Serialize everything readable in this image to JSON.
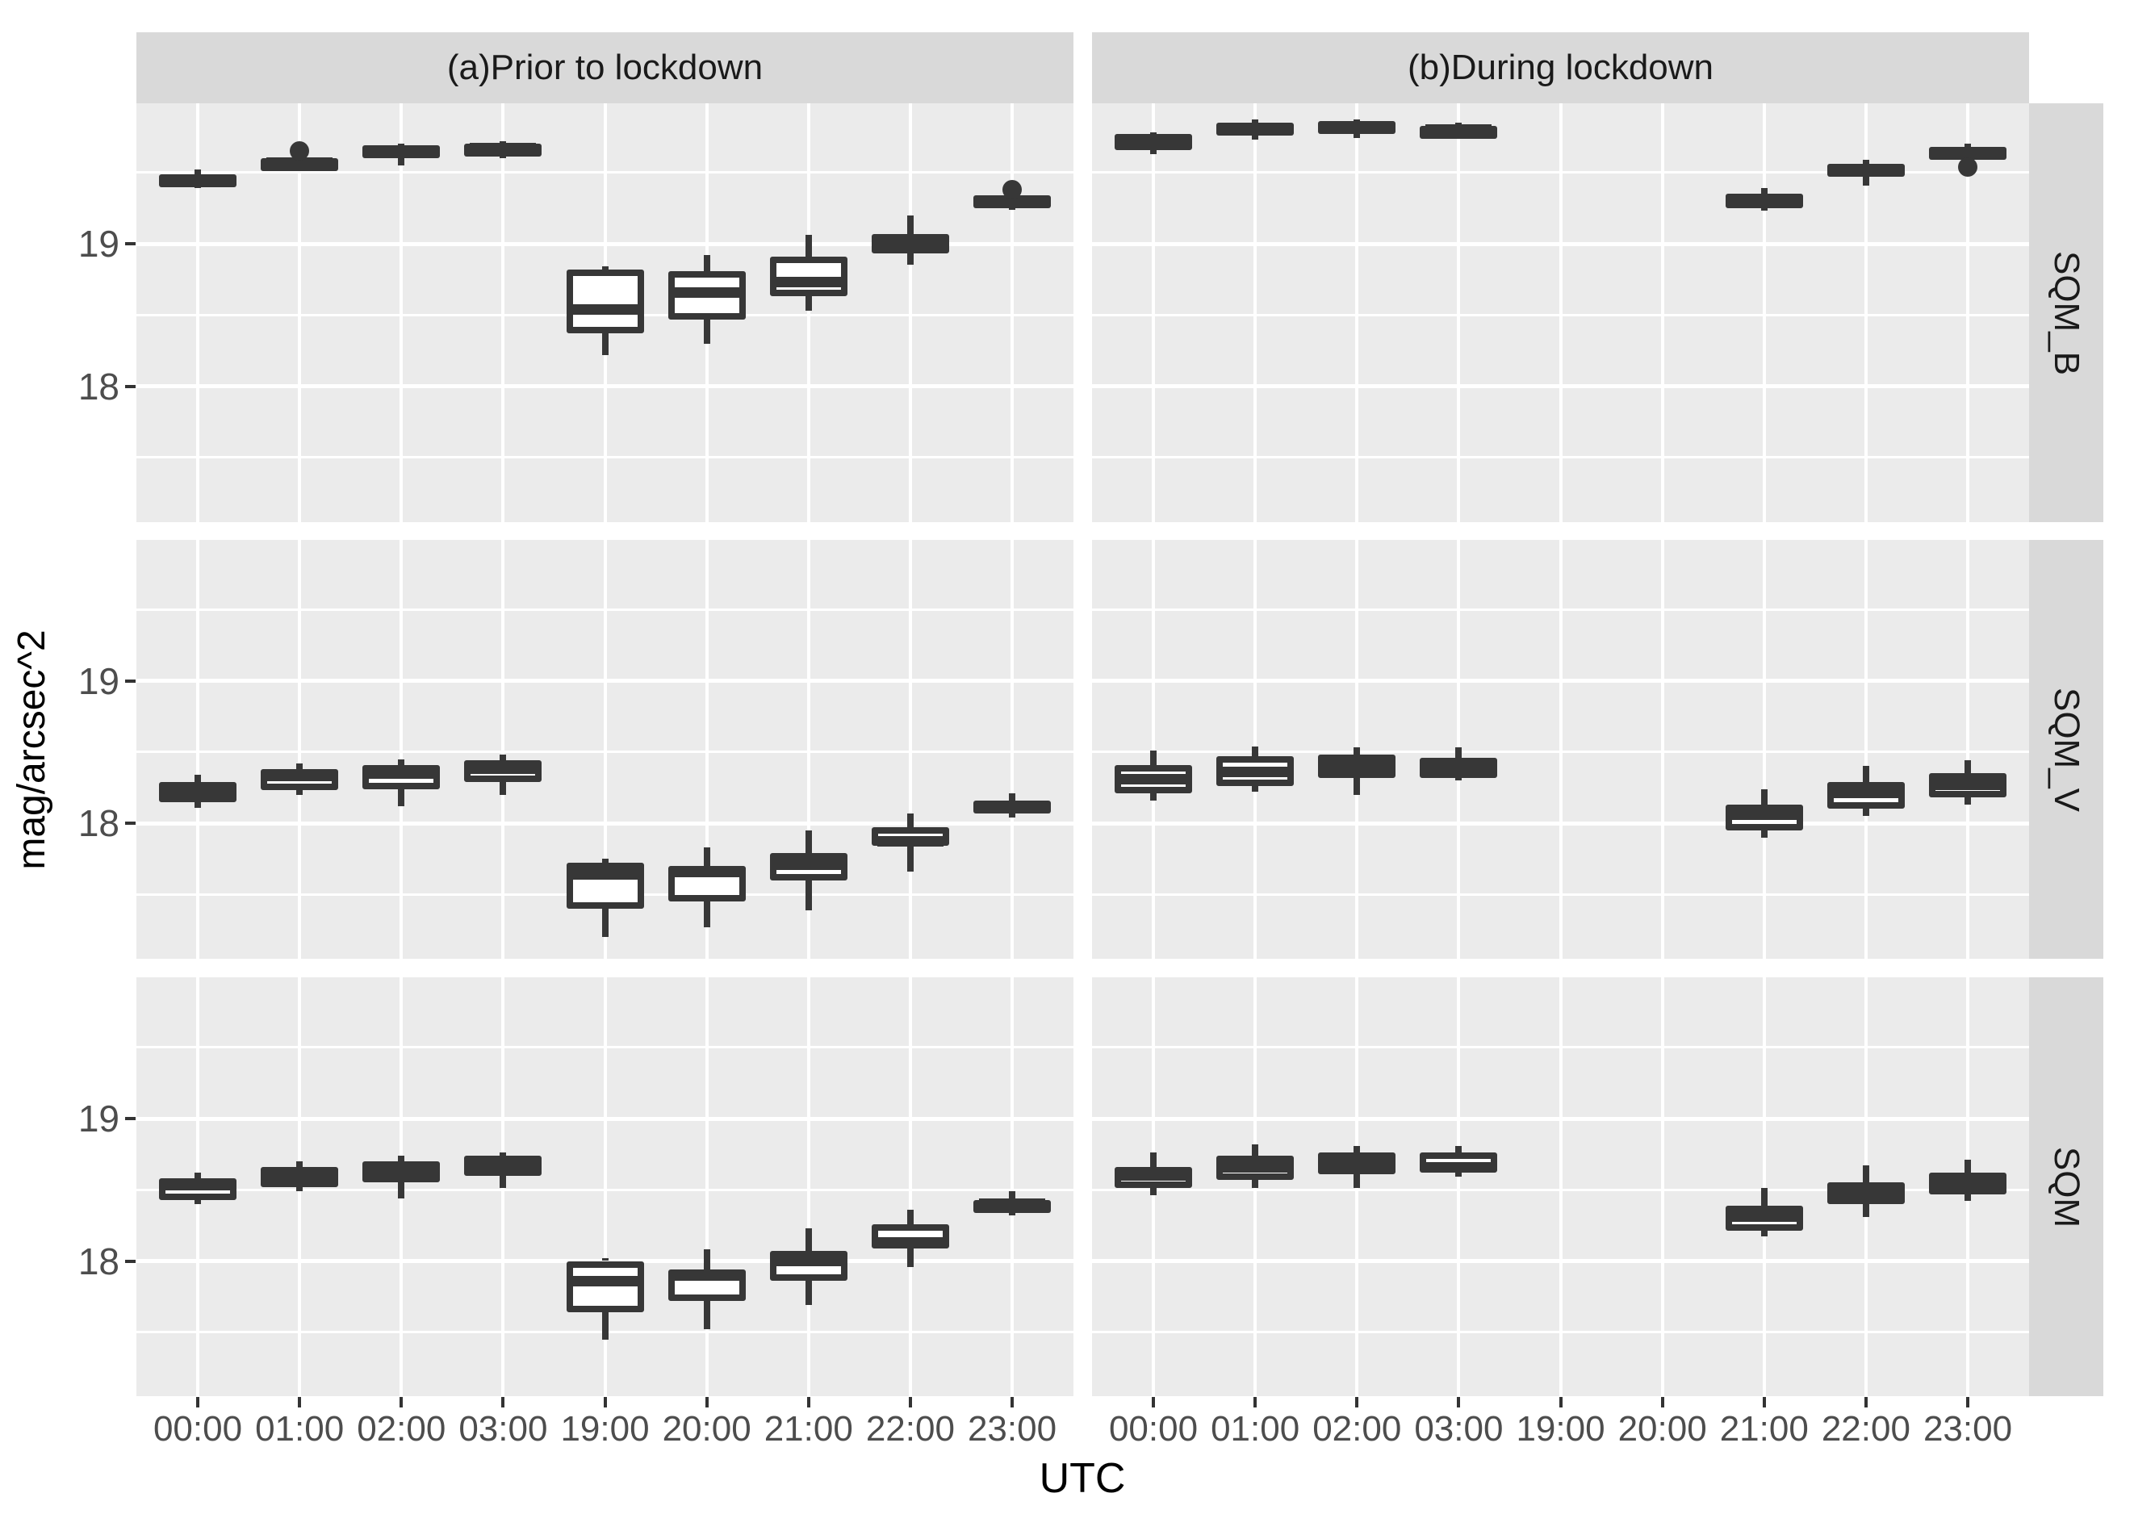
{
  "y_axis": {
    "label": "mag/arcsec^2",
    "tick_labels": [
      "19",
      "18"
    ],
    "tick_values": [
      19,
      18
    ]
  },
  "x_axis": {
    "label": "UTC",
    "categories": [
      "00:00",
      "01:00",
      "02:00",
      "03:00",
      "19:00",
      "20:00",
      "21:00",
      "22:00",
      "23:00"
    ]
  },
  "facets": {
    "columns": [
      {
        "id": "a",
        "label": "(a)Prior to lockdown"
      },
      {
        "id": "b",
        "label": "(b)During lockdown"
      }
    ],
    "rows": [
      {
        "id": "SQM_B",
        "label": "SQM_B"
      },
      {
        "id": "SQM_V",
        "label": "SQM_V"
      },
      {
        "id": "SQM",
        "label": "SQM"
      }
    ]
  },
  "colors": {
    "panel_background": "#ebebeb",
    "strip_background": "#d9d9d9",
    "gridline": "#ffffff",
    "box_stroke": "#373737",
    "box_fill": "#ffffff",
    "tick_label": "#4d4d4d",
    "axis_title": "#000000"
  },
  "chart_data": {
    "type": "boxplot",
    "title": "",
    "xlabel": "UTC",
    "ylabel": "mag/arcsec^2",
    "categories": [
      "00:00",
      "01:00",
      "02:00",
      "03:00",
      "19:00",
      "20:00",
      "21:00",
      "22:00",
      "23:00"
    ],
    "facet_cols": [
      "(a)Prior to lockdown",
      "(b)During lockdown"
    ],
    "facet_rows": [
      "SQM_B",
      "SQM_V",
      "SQM"
    ],
    "ylim": [
      17.05,
      19.99
    ],
    "y_major_gridlines": [
      18,
      19
    ],
    "y_minor_gridlines": [
      17.5,
      18.5,
      19.5
    ],
    "grid": true,
    "legend": "none",
    "panels": [
      {
        "col": 0,
        "row": 0,
        "col_label": "(a)Prior to lockdown",
        "row_label": "SQM_B",
        "boxes": [
          {
            "x": "00:00",
            "whislo": 19.39,
            "q1": 19.41,
            "med": 19.45,
            "q3": 19.49,
            "whishi": 19.52,
            "outliers": []
          },
          {
            "x": "01:00",
            "whislo": 19.51,
            "q1": 19.53,
            "med": 19.57,
            "q3": 19.6,
            "whishi": 19.61,
            "outliers": [
              19.65
            ]
          },
          {
            "x": "02:00",
            "whislo": 19.55,
            "q1": 19.6,
            "med": 19.64,
            "q3": 19.69,
            "whishi": 19.7,
            "outliers": []
          },
          {
            "x": "03:00",
            "whislo": 19.6,
            "q1": 19.63,
            "med": 19.67,
            "q3": 19.7,
            "whishi": 19.72,
            "outliers": []
          },
          {
            "x": "19:00",
            "whislo": 18.22,
            "q1": 18.37,
            "med": 18.54,
            "q3": 18.82,
            "whishi": 18.84,
            "outliers": []
          },
          {
            "x": "20:00",
            "whislo": 18.3,
            "q1": 18.47,
            "med": 18.66,
            "q3": 18.81,
            "whishi": 18.92,
            "outliers": []
          },
          {
            "x": "21:00",
            "whislo": 18.53,
            "q1": 18.63,
            "med": 18.73,
            "q3": 18.91,
            "whishi": 19.06,
            "outliers": []
          },
          {
            "x": "22:00",
            "whislo": 18.85,
            "q1": 18.93,
            "med": 19.0,
            "q3": 19.07,
            "whishi": 19.2,
            "outliers": []
          },
          {
            "x": "23:00",
            "whislo": 19.24,
            "q1": 19.26,
            "med": 19.3,
            "q3": 19.34,
            "whishi": 19.35,
            "outliers": [
              19.38
            ]
          }
        ]
      },
      {
        "col": 1,
        "row": 0,
        "col_label": "(b)During lockdown",
        "row_label": "SQM_B",
        "boxes": [
          {
            "x": "00:00",
            "whislo": 19.63,
            "q1": 19.66,
            "med": 19.71,
            "q3": 19.77,
            "whishi": 19.78,
            "outliers": []
          },
          {
            "x": "01:00",
            "whislo": 19.73,
            "q1": 19.77,
            "med": 19.81,
            "q3": 19.85,
            "whishi": 19.87,
            "outliers": []
          },
          {
            "x": "02:00",
            "whislo": 19.74,
            "q1": 19.77,
            "med": 19.82,
            "q3": 19.86,
            "whishi": 19.87,
            "outliers": []
          },
          {
            "x": "03:00",
            "whislo": 19.74,
            "q1": 19.77,
            "med": 19.8,
            "q3": 19.83,
            "whishi": 19.85,
            "outliers": []
          },
          {
            "x": "19:00",
            "whislo": null,
            "q1": null,
            "med": null,
            "q3": null,
            "whishi": null,
            "outliers": []
          },
          {
            "x": "20:00",
            "whislo": null,
            "q1": null,
            "med": null,
            "q3": null,
            "whishi": null,
            "outliers": []
          },
          {
            "x": "21:00",
            "whislo": 19.23,
            "q1": 19.25,
            "med": 19.3,
            "q3": 19.35,
            "whishi": 19.39,
            "outliers": []
          },
          {
            "x": "22:00",
            "whislo": 19.41,
            "q1": 19.47,
            "med": 19.51,
            "q3": 19.56,
            "whishi": 19.59,
            "outliers": []
          },
          {
            "x": "23:00",
            "whislo": 19.57,
            "q1": 19.6,
            "med": 19.63,
            "q3": 19.68,
            "whishi": 19.7,
            "outliers": [
              19.54
            ]
          }
        ]
      },
      {
        "col": 0,
        "row": 1,
        "col_label": "(a)Prior to lockdown",
        "row_label": "SQM_V",
        "boxes": [
          {
            "x": "00:00",
            "whislo": 18.11,
            "q1": 18.15,
            "med": 18.22,
            "q3": 18.29,
            "whishi": 18.34,
            "outliers": []
          },
          {
            "x": "01:00",
            "whislo": 18.2,
            "q1": 18.23,
            "med": 18.33,
            "q3": 18.38,
            "whishi": 18.42,
            "outliers": []
          },
          {
            "x": "02:00",
            "whislo": 18.12,
            "q1": 18.24,
            "med": 18.35,
            "q3": 18.41,
            "whishi": 18.45,
            "outliers": []
          },
          {
            "x": "03:00",
            "whislo": 18.2,
            "q1": 18.29,
            "med": 18.38,
            "q3": 18.44,
            "whishi": 18.48,
            "outliers": []
          },
          {
            "x": "19:00",
            "whislo": 17.2,
            "q1": 17.4,
            "med": 17.64,
            "q3": 17.72,
            "whishi": 17.75,
            "outliers": []
          },
          {
            "x": "20:00",
            "whislo": 17.27,
            "q1": 17.45,
            "med": 17.66,
            "q3": 17.7,
            "whishi": 17.83,
            "outliers": []
          },
          {
            "x": "21:00",
            "whislo": 17.39,
            "q1": 17.6,
            "med": 17.71,
            "q3": 17.79,
            "whishi": 17.95,
            "outliers": []
          },
          {
            "x": "22:00",
            "whislo": 17.66,
            "q1": 17.84,
            "med": 17.87,
            "q3": 17.97,
            "whishi": 18.07,
            "outliers": []
          },
          {
            "x": "23:00",
            "whislo": 18.04,
            "q1": 18.07,
            "med": 18.12,
            "q3": 18.16,
            "whishi": 18.21,
            "outliers": []
          }
        ]
      },
      {
        "col": 1,
        "row": 1,
        "col_label": "(b)During lockdown",
        "row_label": "SQM_V",
        "boxes": [
          {
            "x": "00:00",
            "whislo": 18.16,
            "q1": 18.21,
            "med": 18.31,
            "q3": 18.41,
            "whishi": 18.51,
            "outliers": []
          },
          {
            "x": "01:00",
            "whislo": 18.22,
            "q1": 18.26,
            "med": 18.36,
            "q3": 18.47,
            "whishi": 18.54,
            "outliers": []
          },
          {
            "x": "02:00",
            "whislo": 18.2,
            "q1": 18.32,
            "med": 18.4,
            "q3": 18.48,
            "whishi": 18.53,
            "outliers": []
          },
          {
            "x": "03:00",
            "whislo": 18.3,
            "q1": 18.32,
            "med": 18.39,
            "q3": 18.46,
            "whishi": 18.53,
            "outliers": []
          },
          {
            "x": "19:00",
            "whislo": null,
            "q1": null,
            "med": null,
            "q3": null,
            "whishi": null,
            "outliers": []
          },
          {
            "x": "20:00",
            "whislo": null,
            "q1": null,
            "med": null,
            "q3": null,
            "whishi": null,
            "outliers": []
          },
          {
            "x": "21:00",
            "whislo": 17.9,
            "q1": 17.95,
            "med": 18.06,
            "q3": 18.13,
            "whishi": 18.24,
            "outliers": []
          },
          {
            "x": "22:00",
            "whislo": 18.05,
            "q1": 18.1,
            "med": 18.21,
            "q3": 18.29,
            "whishi": 18.4,
            "outliers": []
          },
          {
            "x": "23:00",
            "whislo": 18.13,
            "q1": 18.18,
            "med": 18.27,
            "q3": 18.35,
            "whishi": 18.44,
            "outliers": []
          }
        ]
      },
      {
        "col": 0,
        "row": 2,
        "col_label": "(a)Prior to lockdown",
        "row_label": "SQM",
        "boxes": [
          {
            "x": "00:00",
            "whislo": 18.4,
            "q1": 18.43,
            "med": 18.53,
            "q3": 18.58,
            "whishi": 18.62,
            "outliers": []
          },
          {
            "x": "01:00",
            "whislo": 18.49,
            "q1": 18.52,
            "med": 18.6,
            "q3": 18.66,
            "whishi": 18.7,
            "outliers": []
          },
          {
            "x": "02:00",
            "whislo": 18.44,
            "q1": 18.55,
            "med": 18.63,
            "q3": 18.7,
            "whishi": 18.74,
            "outliers": []
          },
          {
            "x": "03:00",
            "whislo": 18.51,
            "q1": 18.6,
            "med": 18.66,
            "q3": 18.74,
            "whishi": 18.76,
            "outliers": []
          },
          {
            "x": "19:00",
            "whislo": 17.45,
            "q1": 17.64,
            "med": 17.86,
            "q3": 18.0,
            "whishi": 18.02,
            "outliers": []
          },
          {
            "x": "20:00",
            "whislo": 17.52,
            "q1": 17.72,
            "med": 17.9,
            "q3": 17.94,
            "whishi": 18.08,
            "outliers": []
          },
          {
            "x": "21:00",
            "whislo": 17.69,
            "q1": 17.86,
            "med": 18.0,
            "q3": 18.07,
            "whishi": 18.23,
            "outliers": []
          },
          {
            "x": "22:00",
            "whislo": 17.96,
            "q1": 18.09,
            "med": 18.13,
            "q3": 18.26,
            "whishi": 18.36,
            "outliers": []
          },
          {
            "x": "23:00",
            "whislo": 18.32,
            "q1": 18.37,
            "med": 18.4,
            "q3": 18.43,
            "whishi": 18.49,
            "outliers": []
          }
        ]
      },
      {
        "col": 1,
        "row": 2,
        "col_label": "(b)During lockdown",
        "row_label": "SQM",
        "boxes": [
          {
            "x": "00:00",
            "whislo": 18.46,
            "q1": 18.51,
            "med": 18.6,
            "q3": 18.66,
            "whishi": 18.76,
            "outliers": []
          },
          {
            "x": "01:00",
            "whislo": 18.51,
            "q1": 18.57,
            "med": 18.66,
            "q3": 18.74,
            "whishi": 18.82,
            "outliers": []
          },
          {
            "x": "02:00",
            "whislo": 18.51,
            "q1": 18.61,
            "med": 18.68,
            "q3": 18.76,
            "whishi": 18.81,
            "outliers": []
          },
          {
            "x": "03:00",
            "whislo": 18.59,
            "q1": 18.62,
            "med": 18.66,
            "q3": 18.76,
            "whishi": 18.81,
            "outliers": []
          },
          {
            "x": "19:00",
            "whislo": null,
            "q1": null,
            "med": null,
            "q3": null,
            "whishi": null,
            "outliers": []
          },
          {
            "x": "20:00",
            "whislo": null,
            "q1": null,
            "med": null,
            "q3": null,
            "whishi": null,
            "outliers": []
          },
          {
            "x": "21:00",
            "whislo": 18.17,
            "q1": 18.21,
            "med": 18.31,
            "q3": 18.39,
            "whishi": 18.51,
            "outliers": []
          },
          {
            "x": "22:00",
            "whislo": 18.31,
            "q1": 18.4,
            "med": 18.47,
            "q3": 18.55,
            "whishi": 18.67,
            "outliers": []
          },
          {
            "x": "23:00",
            "whislo": 18.42,
            "q1": 18.47,
            "med": 18.55,
            "q3": 18.62,
            "whishi": 18.71,
            "outliers": []
          }
        ]
      }
    ]
  }
}
